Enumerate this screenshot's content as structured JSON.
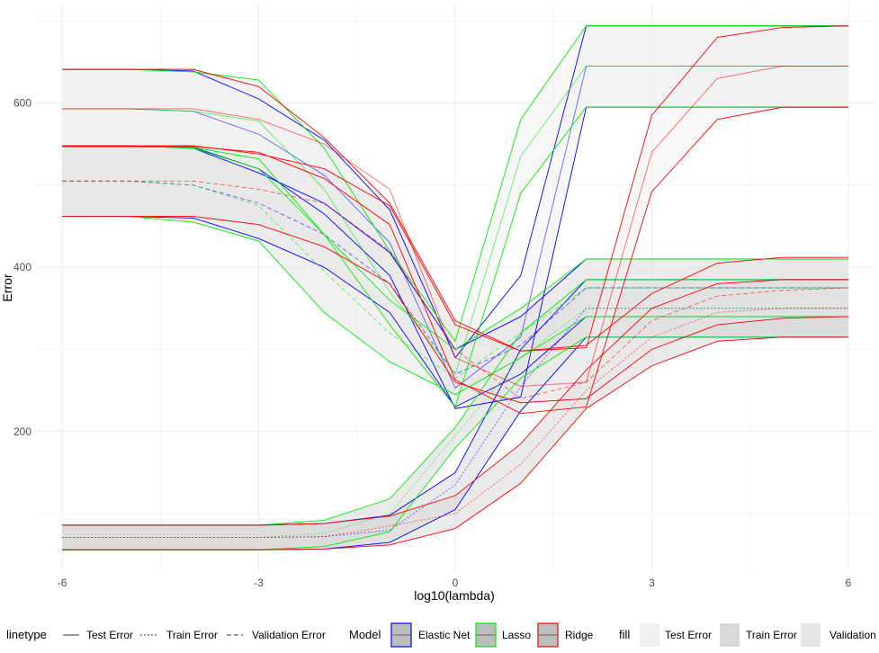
{
  "chart_data": {
    "type": "line",
    "xlabel": "log10(lambda)",
    "ylabel": "Error",
    "xlim": [
      -6.4,
      6.4
    ],
    "ylim": [
      30,
      720
    ],
    "x_ticks": [
      -6,
      -3,
      0,
      3,
      6
    ],
    "x_tick_labels": [
      "-6",
      "-3",
      "0",
      "3",
      "6"
    ],
    "y_ticks": [
      200,
      400,
      600
    ],
    "y_tick_labels": [
      "200",
      "400",
      "600"
    ],
    "grid": true,
    "legend_position": "bottom",
    "x": [
      -6,
      -5,
      -4,
      -3,
      -2,
      -1,
      0,
      1,
      2,
      3,
      4,
      5,
      6
    ],
    "series": [
      {
        "model": "Elastic Net",
        "error_type": "Test Error",
        "mean": [
          593,
          593,
          590,
          562,
          512,
          430,
          253,
          315,
          645,
          645,
          645,
          645,
          645
        ],
        "lower": [
          547,
          547,
          546,
          520,
          465,
          390,
          228,
          242,
          595,
          595,
          595,
          595,
          595
        ],
        "upper": [
          641,
          641,
          639,
          605,
          555,
          470,
          290,
          390,
          694,
          694,
          694,
          694,
          694
        ]
      },
      {
        "model": "Elastic Net",
        "error_type": "Train Error",
        "mean": [
          71,
          71,
          71,
          71,
          72,
          80,
          135,
          255,
          350,
          350,
          350,
          350,
          350
        ],
        "lower": [
          56,
          56,
          56,
          56,
          57,
          65,
          105,
          225,
          315,
          315,
          315,
          315,
          315
        ],
        "upper": [
          86,
          86,
          86,
          86,
          88,
          98,
          150,
          300,
          385,
          385,
          385,
          385,
          385
        ]
      },
      {
        "model": "Elastic Net",
        "error_type": "Validation Error",
        "mean": [
          505,
          505,
          500,
          478,
          440,
          380,
          270,
          305,
          375,
          375,
          375,
          375,
          375
        ],
        "lower": [
          462,
          462,
          460,
          435,
          400,
          345,
          230,
          270,
          340,
          340,
          340,
          340,
          340
        ],
        "upper": [
          548,
          548,
          545,
          515,
          478,
          418,
          300,
          340,
          410,
          410,
          410,
          410,
          410
        ]
      },
      {
        "model": "Lasso",
        "error_type": "Test Error",
        "mean": [
          593,
          593,
          590,
          578,
          495,
          370,
          270,
          535,
          645,
          645,
          645,
          645,
          645
        ],
        "lower": [
          547,
          547,
          546,
          532,
          440,
          330,
          230,
          490,
          595,
          595,
          595,
          595,
          595
        ],
        "upper": [
          641,
          641,
          638,
          628,
          545,
          420,
          310,
          580,
          694,
          694,
          694,
          694,
          694
        ]
      },
      {
        "model": "Lasso",
        "error_type": "Train Error",
        "mean": [
          71,
          71,
          71,
          71,
          76,
          100,
          195,
          290,
          350,
          350,
          350,
          350,
          350
        ],
        "lower": [
          56,
          56,
          56,
          56,
          60,
          78,
          180,
          265,
          315,
          315,
          315,
          315,
          315
        ],
        "upper": [
          86,
          86,
          86,
          86,
          92,
          118,
          205,
          320,
          385,
          385,
          385,
          385,
          385
        ]
      },
      {
        "model": "Lasso",
        "error_type": "Validation Error",
        "mean": [
          505,
          505,
          500,
          475,
          395,
          320,
          265,
          320,
          375,
          375,
          375,
          375,
          375
        ],
        "lower": [
          462,
          462,
          455,
          432,
          345,
          285,
          245,
          290,
          340,
          340,
          340,
          340,
          340
        ],
        "upper": [
          548,
          548,
          545,
          520,
          440,
          360,
          300,
          350,
          410,
          410,
          410,
          410,
          410
        ]
      },
      {
        "model": "Ridge",
        "error_type": "Test Error",
        "mean": [
          593,
          593,
          593,
          580,
          550,
          495,
          290,
          255,
          260,
          540,
          630,
          645,
          645
        ],
        "lower": [
          547,
          547,
          547,
          540,
          508,
          452,
          263,
          222,
          230,
          492,
          580,
          595,
          595
        ],
        "upper": [
          641,
          641,
          641,
          620,
          558,
          478,
          335,
          298,
          302,
          585,
          680,
          692,
          694
        ]
      },
      {
        "model": "Ridge",
        "error_type": "Train Error",
        "mean": [
          71,
          71,
          71,
          71,
          72,
          85,
          100,
          160,
          250,
          315,
          345,
          350,
          350
        ],
        "lower": [
          56,
          56,
          56,
          56,
          57,
          62,
          82,
          137,
          228,
          280,
          310,
          315,
          315
        ],
        "upper": [
          86,
          86,
          86,
          86,
          88,
          97,
          122,
          185,
          275,
          350,
          380,
          385,
          385
        ]
      },
      {
        "model": "Ridge",
        "error_type": "Validation Error",
        "mean": [
          505,
          505,
          505,
          495,
          478,
          420,
          300,
          240,
          260,
          335,
          365,
          372,
          375
        ],
        "lower": [
          462,
          462,
          462,
          452,
          425,
          380,
          260,
          235,
          240,
          300,
          330,
          338,
          340
        ],
        "upper": [
          548,
          548,
          548,
          538,
          520,
          475,
          330,
          298,
          305,
          368,
          405,
          412,
          412
        ]
      }
    ]
  },
  "colors": {
    "Elastic Net": "#0000ff",
    "Lasso": "#00ee00",
    "Ridge": "#ff0000",
    "fill_Test Error": "#f0f0f0",
    "fill_Train Error": "#d9d9d9",
    "fill_Validation Error": "#e5e5e5",
    "grid": "#ebebeb"
  },
  "legend": {
    "linetype_title": "linetype",
    "linetype_items": [
      "Test Error",
      "Train Error",
      "Validation Error"
    ],
    "model_title": "Model",
    "model_items": [
      "Elastic Net",
      "Lasso",
      "Ridge"
    ],
    "fill_title": "fill",
    "fill_items": [
      "Test Error",
      "Train Error",
      "Validation"
    ]
  }
}
